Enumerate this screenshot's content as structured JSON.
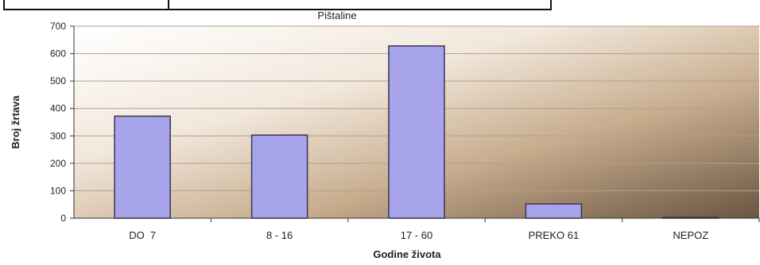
{
  "chart_data": {
    "type": "bar",
    "title": "Pištaline",
    "xlabel": "Godine života",
    "ylabel": "Broj žrtava",
    "categories": [
      "DO  7",
      "8 - 16",
      "17 - 60",
      "PREKO 61",
      "NEPOZ"
    ],
    "values": [
      372,
      303,
      628,
      52,
      0
    ],
    "ylim": [
      0,
      700
    ],
    "yticks": [
      0,
      100,
      200,
      300,
      400,
      500,
      600,
      700
    ],
    "grid": true,
    "legend": "none",
    "colors": {
      "bar_fill": "#a8a4ec",
      "bar_stroke": "#3a3550",
      "grid": "#b0a090",
      "axis_text": "#222222"
    }
  }
}
